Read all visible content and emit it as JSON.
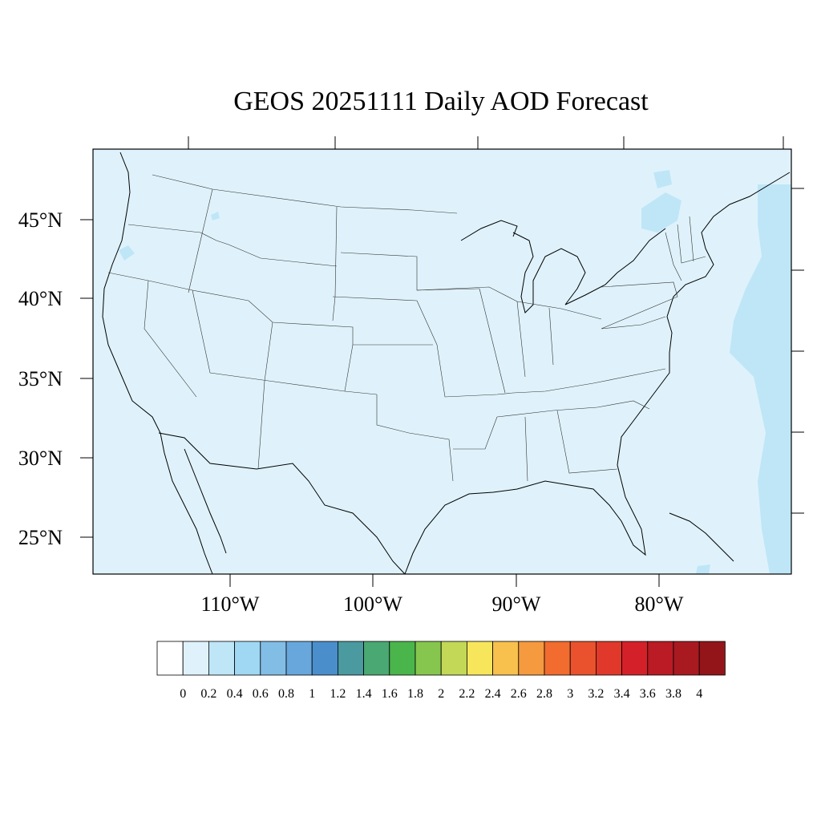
{
  "title": "GEOS 20251111 Daily AOD Forecast",
  "map": {
    "lat_labels": [
      "45°N",
      "40°N",
      "35°N",
      "30°N",
      "25°N"
    ],
    "lon_labels": [
      "110°W",
      "100°W",
      "90°W",
      "80°W"
    ],
    "background_value_color": "#dff2fb",
    "higher_value_color": "#bfe6f7"
  },
  "colorbar": {
    "labels": [
      "0",
      "0.2",
      "0.4",
      "0.6",
      "0.8",
      "1",
      "1.2",
      "1.4",
      "1.6",
      "1.8",
      "2",
      "2.2",
      "2.4",
      "2.6",
      "2.8",
      "3",
      "3.2",
      "3.4",
      "3.6",
      "3.8",
      "4"
    ],
    "colors": [
      "#ffffff",
      "#dff2fb",
      "#bfe6f7",
      "#a0d8f4",
      "#82bde6",
      "#67a7dc",
      "#4a8ecb",
      "#4a9aa0",
      "#4aa873",
      "#4ab54a",
      "#86c64e",
      "#c2d856",
      "#f7e65c",
      "#f8c04c",
      "#f59a3e",
      "#f16c2e",
      "#e9522d",
      "#e0382b",
      "#d42129",
      "#ba1b24",
      "#a91a20",
      "#941519"
    ]
  }
}
